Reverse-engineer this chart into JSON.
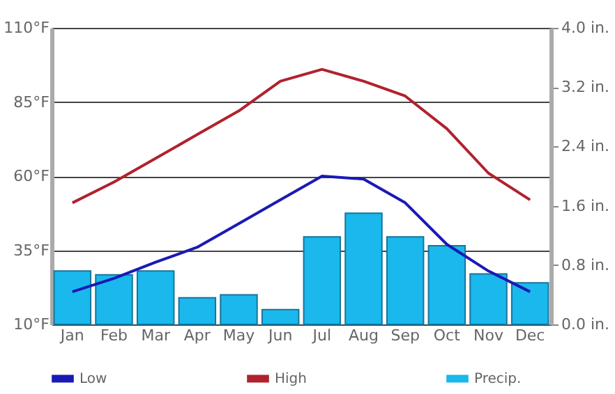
{
  "chart_data": {
    "type": "line",
    "categories": [
      "Jan",
      "Feb",
      "Mar",
      "Apr",
      "May",
      "Jun",
      "Jul",
      "Aug",
      "Sep",
      "Oct",
      "Nov",
      "Dec"
    ],
    "series": [
      {
        "name": "Low",
        "color": "#1a1ab4",
        "values": [
          21,
          25.5,
          31,
          36,
          44,
          52,
          60,
          59,
          51,
          37,
          28,
          21
        ]
      },
      {
        "name": "High",
        "color": "#b0222e",
        "values": [
          51,
          58,
          66,
          74,
          82,
          92,
          96,
          92,
          87,
          76,
          61,
          52
        ]
      },
      {
        "name": "Precip.",
        "type": "bar",
        "axis": "y2",
        "color": "#1ab8ec",
        "values": [
          0.72,
          0.67,
          0.72,
          0.36,
          0.4,
          0.2,
          1.18,
          1.5,
          1.18,
          1.06,
          0.68,
          0.56
        ]
      }
    ],
    "ylim": [
      10,
      110
    ],
    "yticks": [
      {
        "value": 10,
        "label": "10°F"
      },
      {
        "value": 35,
        "label": "35°F"
      },
      {
        "value": 60,
        "label": "60°F"
      },
      {
        "value": 85,
        "label": "85°F"
      },
      {
        "value": 110,
        "label": "110°F"
      }
    ],
    "y2lim": [
      0,
      4
    ],
    "y2ticks": [
      {
        "value": 0,
        "label": "0.0 in."
      },
      {
        "value": 0.8,
        "label": "0.8 in."
      },
      {
        "value": 1.6,
        "label": "1.6 in."
      },
      {
        "value": 2.4,
        "label": "2.4 in."
      },
      {
        "value": 3.2,
        "label": "3.2 in."
      },
      {
        "value": 4,
        "label": "4.0 in."
      }
    ],
    "grid": "y",
    "legend": "bottom"
  }
}
